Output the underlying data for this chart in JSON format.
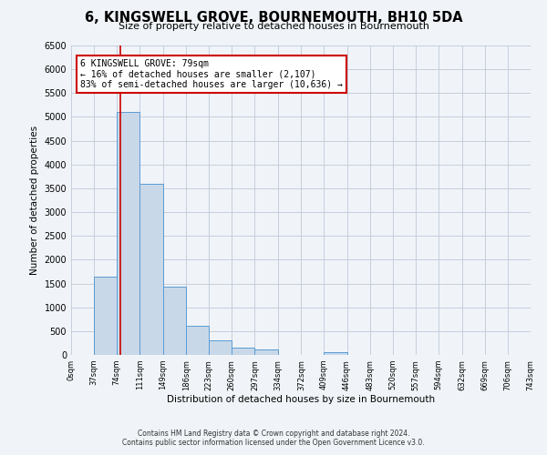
{
  "title": "6, KINGSWELL GROVE, BOURNEMOUTH, BH10 5DA",
  "subtitle": "Size of property relative to detached houses in Bournemouth",
  "xlabel": "Distribution of detached houses by size in Bournemouth",
  "ylabel": "Number of detached properties",
  "bin_edges": [
    0,
    37,
    74,
    111,
    149,
    186,
    223,
    260,
    297,
    334,
    372,
    409,
    446,
    483,
    520,
    557,
    594,
    632,
    669,
    706,
    743
  ],
  "bar_heights": [
    0,
    1650,
    5100,
    3600,
    1430,
    620,
    310,
    155,
    110,
    0,
    0,
    50,
    0,
    0,
    0,
    0,
    0,
    0,
    0,
    0
  ],
  "bar_color": "#c8d8e8",
  "bar_edgecolor": "#5b9bd5",
  "property_size": 79,
  "red_line_color": "#cc0000",
  "annotation_text": "6 KINGSWELL GROVE: 79sqm\n← 16% of detached houses are smaller (2,107)\n83% of semi-detached houses are larger (10,636) →",
  "annotation_box_color": "#ffffff",
  "annotation_box_edgecolor": "#cc0000",
  "ylim": [
    0,
    6500
  ],
  "yticks": [
    0,
    500,
    1000,
    1500,
    2000,
    2500,
    3000,
    3500,
    4000,
    4500,
    5000,
    5500,
    6000,
    6500
  ],
  "grid_color": "#c0c8d8",
  "footer_line1": "Contains HM Land Registry data © Crown copyright and database right 2024.",
  "footer_line2": "Contains public sector information licensed under the Open Government Licence v3.0.",
  "background_color": "#f0f4f8",
  "xlim": [
    0,
    743
  ]
}
